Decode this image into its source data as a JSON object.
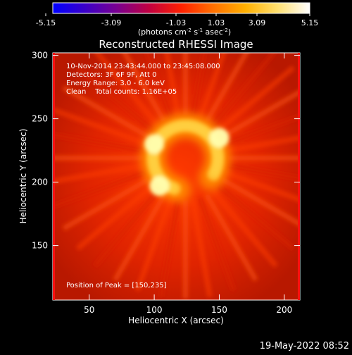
{
  "colorbar": {
    "ticks": [
      "-5.15",
      "-3.09",
      "-1.03",
      "1.03",
      "3.09",
      "5.15"
    ],
    "unit_prefix": "(photons cm",
    "unit_exp1": "-2",
    "unit_mid": " s",
    "unit_exp2": "-1",
    "unit_mid2": " asec",
    "unit_exp3": "-2",
    "unit_suffix": ")",
    "stops": [
      "#0000ff",
      "#3a00c8",
      "#7a0090",
      "#c00040",
      "#ff2000",
      "#ff7000",
      "#ffb000",
      "#ffe070",
      "#ffffff"
    ]
  },
  "chart_data": {
    "type": "heatmap",
    "title": "Reconstructed RHESSI Image",
    "xlabel": "Heliocentric X (arcsec)",
    "ylabel": "Heliocentric Y (arcsec)",
    "xlim": [
      22,
      212
    ],
    "ylim": [
      107,
      302
    ],
    "xticks": [
      50,
      100,
      150,
      200
    ],
    "yticks": [
      150,
      200,
      250,
      300
    ],
    "annotations": [
      "10-Nov-2014 23:43:44.000 to 23:45:08.000",
      "Detectors: 3F 6F 9F, Att 0",
      "Energy Range: 3.0 - 6.0 keV",
      "Clean    Total counts: 1.16E+05"
    ],
    "peak_label": "Position of Peak = [150,235]",
    "peak": [
      150,
      235
    ],
    "source_center": [
      124,
      219
    ],
    "source_radius": 25,
    "colors": {
      "background": "#c81c00",
      "hot": "#ff2000",
      "peak": "#ffffb0"
    }
  },
  "footer": {
    "timestamp": "19-May-2022 08:52"
  }
}
